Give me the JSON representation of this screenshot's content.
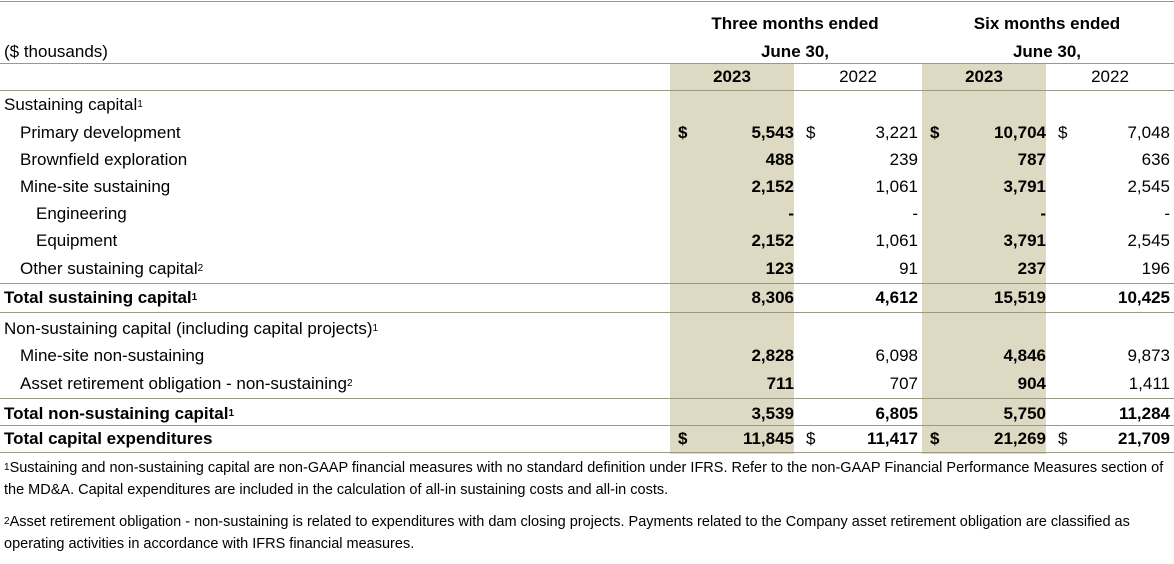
{
  "header": {
    "units_label": "($ thousands)",
    "three_months_line1": "Three months ended",
    "three_months_line2": "June 30,",
    "six_months_line1": "Six months ended",
    "six_months_line2": "June 30,",
    "year_current_3m": "2023",
    "year_prior_3m": "2022",
    "year_current_6m": "2023",
    "year_prior_6m": "2022"
  },
  "currency_symbol": "$",
  "rows": [
    {
      "label": "Sustaining capital",
      "sup": "1",
      "indent": 0,
      "bold": false,
      "dollar": false,
      "values": [
        "",
        "",
        "",
        ""
      ]
    },
    {
      "label": "Primary development",
      "sup": "",
      "indent": 1,
      "bold": false,
      "dollar": true,
      "values": [
        "5,543",
        "3,221",
        "10,704",
        "7,048"
      ]
    },
    {
      "label": "Brownfield exploration",
      "sup": "",
      "indent": 1,
      "bold": false,
      "dollar": false,
      "values": [
        "488",
        "239",
        "787",
        "636"
      ]
    },
    {
      "label": "Mine-site sustaining",
      "sup": "",
      "indent": 1,
      "bold": false,
      "dollar": false,
      "values": [
        "2,152",
        "1,061",
        "3,791",
        "2,545"
      ]
    },
    {
      "label": "Engineering",
      "sup": "",
      "indent": 2,
      "bold": false,
      "dollar": false,
      "values": [
        "-",
        "-",
        "-",
        "-"
      ]
    },
    {
      "label": "Equipment",
      "sup": "",
      "indent": 2,
      "bold": false,
      "dollar": false,
      "values": [
        "2,152",
        "1,061",
        "3,791",
        "2,545"
      ]
    },
    {
      "label": "Other sustaining capital",
      "sup": "2",
      "indent": 1,
      "bold": false,
      "dollar": false,
      "values": [
        "123",
        "91",
        "237",
        "196"
      ]
    },
    {
      "label": "Total sustaining capital",
      "sup": "1",
      "indent": 0,
      "bold": true,
      "dollar": false,
      "values": [
        "8,306",
        "4,612",
        "15,519",
        "10,425"
      ]
    },
    {
      "label": "Non-sustaining capital (including capital projects)",
      "sup": "1",
      "indent": 0,
      "bold": false,
      "dollar": false,
      "values": [
        "",
        "",
        "",
        ""
      ]
    },
    {
      "label": "Mine-site non-sustaining",
      "sup": "",
      "indent": 1,
      "bold": false,
      "dollar": false,
      "values": [
        "2,828",
        "6,098",
        "4,846",
        "9,873"
      ]
    },
    {
      "label": "Asset retirement obligation - non-sustaining",
      "sup": "2",
      "indent": 1,
      "bold": false,
      "dollar": false,
      "values": [
        "711",
        "707",
        "904",
        "1,411"
      ]
    },
    {
      "label": "Total non-sustaining capital",
      "sup": "1",
      "indent": 0,
      "bold": true,
      "dollar": false,
      "values": [
        "3,539",
        "6,805",
        "5,750",
        "11,284"
      ]
    },
    {
      "label": "Total capital expenditures",
      "sup": "",
      "indent": 0,
      "bold": true,
      "dollar": true,
      "values": [
        "11,845",
        "11,417",
        "21,269",
        "21,709"
      ]
    }
  ],
  "footnotes": [
    {
      "marker": "1",
      "text": "Sustaining and non-sustaining capital are non-GAAP financial measures with no standard definition under IFRS. Refer to the non-GAAP Financial Performance Measures section of the MD&A. Capital expenditures are included in the calculation of all-in sustaining costs and all-in costs."
    },
    {
      "marker": "2",
      "text": "Asset retirement obligation - non-sustaining is related to expenditures with dam closing projects. Payments related to the Company asset retirement obligation are classified as operating activities in accordance with IFRS financial measures."
    }
  ],
  "colors": {
    "highlight_column": "#ddd9c3",
    "rule": "#9a9a80"
  }
}
